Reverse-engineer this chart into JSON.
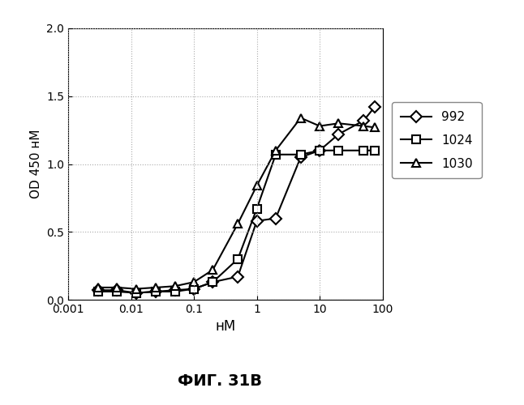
{
  "series": [
    {
      "label": "992",
      "marker": "D",
      "x": [
        0.003,
        0.006,
        0.012,
        0.025,
        0.05,
        0.1,
        0.2,
        0.5,
        1.0,
        2.0,
        5.0,
        10.0,
        20.0,
        50.0,
        75.0
      ],
      "y": [
        0.07,
        0.07,
        0.05,
        0.06,
        0.07,
        0.08,
        0.13,
        0.17,
        0.58,
        0.6,
        1.05,
        1.1,
        1.22,
        1.32,
        1.42
      ]
    },
    {
      "label": "1024",
      "marker": "s",
      "x": [
        0.003,
        0.006,
        0.012,
        0.025,
        0.05,
        0.1,
        0.2,
        0.5,
        1.0,
        2.0,
        5.0,
        10.0,
        20.0,
        50.0,
        75.0
      ],
      "y": [
        0.06,
        0.06,
        0.05,
        0.06,
        0.06,
        0.08,
        0.13,
        0.3,
        0.67,
        1.07,
        1.07,
        1.1,
        1.1,
        1.1,
        1.1
      ]
    },
    {
      "label": "1030",
      "marker": "^",
      "x": [
        0.003,
        0.006,
        0.012,
        0.025,
        0.05,
        0.1,
        0.2,
        0.5,
        1.0,
        2.0,
        5.0,
        10.0,
        20.0,
        50.0,
        75.0
      ],
      "y": [
        0.09,
        0.09,
        0.08,
        0.09,
        0.1,
        0.13,
        0.22,
        0.56,
        0.84,
        1.1,
        1.34,
        1.28,
        1.3,
        1.28,
        1.27
      ]
    }
  ],
  "xlabel": "нM",
  "ylabel": "OD 450 нM",
  "xlim": [
    0.001,
    100
  ],
  "ylim": [
    0,
    2
  ],
  "yticks": [
    0,
    0.5,
    1.0,
    1.5,
    2.0
  ],
  "xticks": [
    0.001,
    0.01,
    0.1,
    1,
    10,
    100
  ],
  "xtick_labels": [
    "0.001",
    "0.01",
    "0.1",
    "1",
    "10",
    "100"
  ],
  "color": "#000000",
  "figure_caption": "ФИГ. 31В",
  "caption_bold": true,
  "background_color": "#ffffff",
  "grid_color": "#aaaaaa",
  "marker_size": 7,
  "line_width": 1.5
}
